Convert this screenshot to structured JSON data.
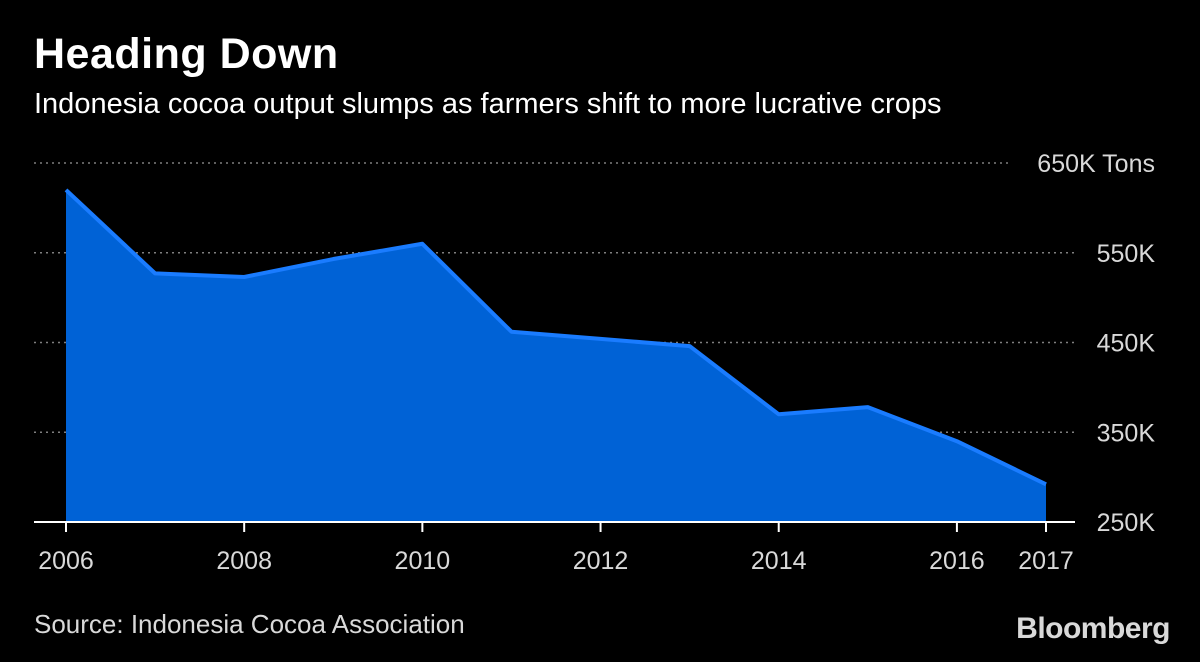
{
  "header": {
    "title": "Heading Down",
    "subtitle": "Indonesia cocoa output slumps as farmers shift to more lucrative crops"
  },
  "footer": {
    "source": "Source: Indonesia Cocoa Association",
    "brand": "Bloomberg"
  },
  "colors": {
    "background": "#000000",
    "area_fill": "#0062d6",
    "line": "#1a7cff",
    "grid": "#7f7f7f",
    "text": "#ffffff",
    "muted_text": "#d9d9d9"
  },
  "chart_data": {
    "type": "area",
    "title": "Heading Down",
    "subtitle": "Indonesia cocoa output slumps as farmers shift to more lucrative crops",
    "xlabel": "",
    "ylabel": "",
    "unit": "Tons",
    "x": [
      2006,
      2007,
      2008,
      2009,
      2010,
      2011,
      2012,
      2013,
      2014,
      2015,
      2016,
      2017
    ],
    "series": [
      {
        "name": "Indonesia cocoa output",
        "values": [
          620000,
          527000,
          523000,
          543000,
          560000,
          462000,
          454000,
          446000,
          370000,
          378000,
          340000,
          292000
        ]
      }
    ],
    "ylim": [
      250000,
      650000
    ],
    "yticks": [
      {
        "value": 650000,
        "label": "650K Tons"
      },
      {
        "value": 550000,
        "label": "550K"
      },
      {
        "value": 450000,
        "label": "450K"
      },
      {
        "value": 350000,
        "label": "350K"
      },
      {
        "value": 250000,
        "label": "250K"
      }
    ],
    "xticks": [
      {
        "value": 2006,
        "label": "2006"
      },
      {
        "value": 2008,
        "label": "2008"
      },
      {
        "value": 2010,
        "label": "2010"
      },
      {
        "value": 2012,
        "label": "2012"
      },
      {
        "value": 2014,
        "label": "2014"
      },
      {
        "value": 2016,
        "label": "2016"
      },
      {
        "value": 2017,
        "label": "2017"
      }
    ],
    "grid": true,
    "legend": "none"
  }
}
